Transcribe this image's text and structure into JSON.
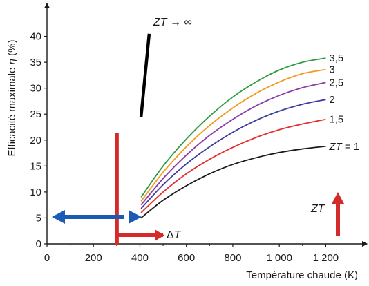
{
  "chart_data": {
    "type": "line",
    "xlabel": "Température chaude (K)",
    "ylabel_prefix": "Efficacité maximale ",
    "ylabel_eta": "η",
    "ylabel_suffix": " (%)",
    "xlim": [
      0,
      1300
    ],
    "ylim": [
      0,
      45
    ],
    "x_ticks": [
      0,
      200,
      400,
      600,
      800,
      1000,
      1200
    ],
    "x_tick_labels": [
      "0",
      "200",
      "400",
      "600",
      "800",
      "1 000",
      "1 200"
    ],
    "y_ticks": [
      0,
      5,
      10,
      15,
      20,
      25,
      30,
      35,
      40
    ],
    "y_tick_labels": [
      "0",
      "5",
      "10",
      "15",
      "20",
      "25",
      "30",
      "35",
      "40"
    ],
    "cold_temperature": 300,
    "series": [
      {
        "name": "1",
        "color": "#1a1a1a",
        "points": [
          [
            405,
            5.0
          ],
          [
            500,
            8.4
          ],
          [
            600,
            11.2
          ],
          [
            700,
            13.5
          ],
          [
            800,
            15.3
          ],
          [
            900,
            16.6
          ],
          [
            1000,
            17.6
          ],
          [
            1100,
            18.3
          ],
          [
            1200,
            18.8
          ]
        ]
      },
      {
        "name": "1,5",
        "color": "#e03030",
        "points": [
          [
            405,
            6.0
          ],
          [
            500,
            10.0
          ],
          [
            600,
            13.5
          ],
          [
            700,
            16.3
          ],
          [
            800,
            18.6
          ],
          [
            900,
            20.5
          ],
          [
            1000,
            22.0
          ],
          [
            1100,
            23.1
          ],
          [
            1200,
            24.0
          ]
        ]
      },
      {
        "name": "2",
        "color": "#3c3c9e",
        "points": [
          [
            405,
            6.8
          ],
          [
            500,
            11.4
          ],
          [
            600,
            15.4
          ],
          [
            700,
            18.7
          ],
          [
            800,
            21.5
          ],
          [
            900,
            23.8
          ],
          [
            1000,
            25.6
          ],
          [
            1100,
            26.9
          ],
          [
            1200,
            27.8
          ]
        ]
      },
      {
        "name": "2,5",
        "color": "#8b3aa8",
        "points": [
          [
            405,
            7.5
          ],
          [
            500,
            12.6
          ],
          [
            600,
            17.1
          ],
          [
            700,
            20.9
          ],
          [
            800,
            24.0
          ],
          [
            900,
            26.6
          ],
          [
            1000,
            28.6
          ],
          [
            1100,
            30.1
          ],
          [
            1200,
            31.1
          ]
        ]
      },
      {
        "name": "3",
        "color": "#f39a1e",
        "points": [
          [
            405,
            8.2
          ],
          [
            500,
            13.8
          ],
          [
            600,
            18.7
          ],
          [
            700,
            22.8
          ],
          [
            800,
            26.2
          ],
          [
            900,
            29.0
          ],
          [
            1000,
            31.2
          ],
          [
            1100,
            32.8
          ],
          [
            1200,
            33.6
          ]
        ]
      },
      {
        "name": "3,5",
        "color": "#2e9b3e",
        "points": [
          [
            405,
            9.0
          ],
          [
            500,
            15.0
          ],
          [
            600,
            20.2
          ],
          [
            700,
            24.6
          ],
          [
            800,
            28.3
          ],
          [
            900,
            31.2
          ],
          [
            1000,
            33.5
          ],
          [
            1100,
            35.0
          ],
          [
            1200,
            35.8
          ]
        ]
      }
    ],
    "zt_infinity": {
      "label_prefix": "ZT",
      "label_suffix": " → ∞",
      "color": "#000000",
      "points": [
        [
          405,
          24.5
        ],
        [
          440,
          40.5
        ]
      ]
    },
    "zt_series_label_prefix": "ZT",
    "zt_series_label_suffix": " = 1",
    "annotations": {
      "delta_t": "ΔT",
      "delta_t_color": "#d42a2a",
      "zt_arrow_label": "ZT",
      "zt_arrow_color": "#d42a2a",
      "cold_arrow_color": "#1a5bb5"
    }
  }
}
